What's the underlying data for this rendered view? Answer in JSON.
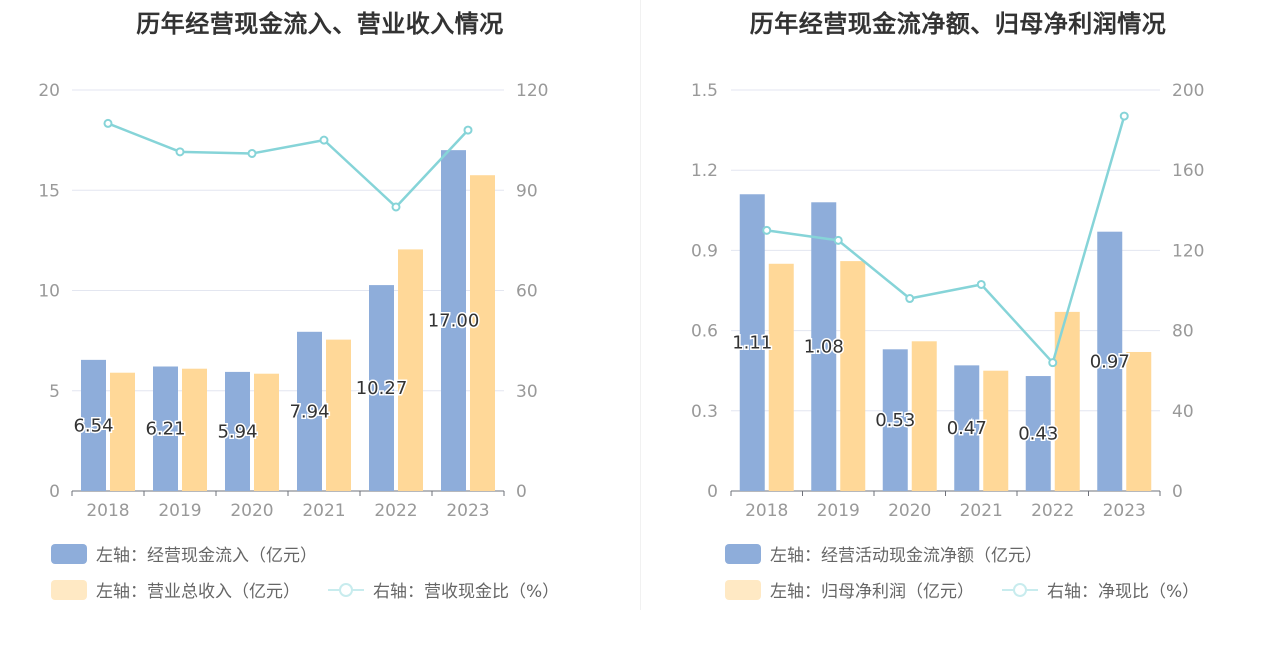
{
  "colors": {
    "bar_primary": "#8EADDA",
    "bar_secondary": "#FFD898",
    "line": "#86D4D8",
    "axis": "#999999",
    "grid": "#E3E6F0",
    "title": "#333333"
  },
  "chart_data": [
    {
      "type": "bar",
      "title": "历年经营现金流入、营业收入情况",
      "categories": [
        "2018",
        "2019",
        "2020",
        "2021",
        "2022",
        "2023"
      ],
      "y_left": {
        "ticks": [
          "0",
          "5",
          "10",
          "15",
          "20"
        ],
        "lim": [
          0,
          20
        ]
      },
      "y_right": {
        "ticks": [
          "0",
          "30",
          "60",
          "90",
          "120"
        ],
        "lim": [
          0,
          120
        ]
      },
      "series": [
        {
          "name": "左轴：经营现金流入（亿元）",
          "axis": "left",
          "kind": "bar",
          "values": [
            6.54,
            6.21,
            5.94,
            7.94,
            10.27,
            17.0
          ],
          "labels": [
            "6.54",
            "6.21",
            "5.94",
            "7.94",
            "10.27",
            "17.00"
          ]
        },
        {
          "name": "左轴：营业总收入（亿元）",
          "axis": "left",
          "kind": "bar",
          "values": [
            5.9,
            6.1,
            5.85,
            7.55,
            12.05,
            15.75
          ]
        },
        {
          "name": "右轴：营收现金比（%）",
          "axis": "right",
          "kind": "line",
          "values": [
            110,
            101.5,
            101,
            105,
            85,
            108
          ]
        }
      ],
      "grid": true,
      "legend": "bottom-left"
    },
    {
      "type": "bar",
      "title": "历年经营现金流净额、归母净利润情况",
      "categories": [
        "2018",
        "2019",
        "2020",
        "2021",
        "2022",
        "2023"
      ],
      "y_left": {
        "ticks": [
          "0",
          "0.3",
          "0.6",
          "0.9",
          "1.2",
          "1.5"
        ],
        "lim": [
          0,
          1.5
        ]
      },
      "y_right": {
        "ticks": [
          "0",
          "40",
          "80",
          "120",
          "160",
          "200"
        ],
        "lim": [
          0,
          200
        ]
      },
      "series": [
        {
          "name": "左轴：经营活动现金流净额（亿元）",
          "axis": "left",
          "kind": "bar",
          "values": [
            1.11,
            1.08,
            0.53,
            0.47,
            0.43,
            0.97
          ],
          "labels": [
            "1.11",
            "1.08",
            "0.53",
            "0.47",
            "0.43",
            "0.97"
          ]
        },
        {
          "name": "左轴：归母净利润（亿元）",
          "axis": "left",
          "kind": "bar",
          "values": [
            0.85,
            0.86,
            0.56,
            0.45,
            0.67,
            0.52
          ]
        },
        {
          "name": "右轴：净现比（%）",
          "axis": "right",
          "kind": "line",
          "values": [
            130,
            125,
            96,
            103,
            64,
            187
          ]
        }
      ],
      "grid": true,
      "legend": "bottom-left"
    }
  ]
}
